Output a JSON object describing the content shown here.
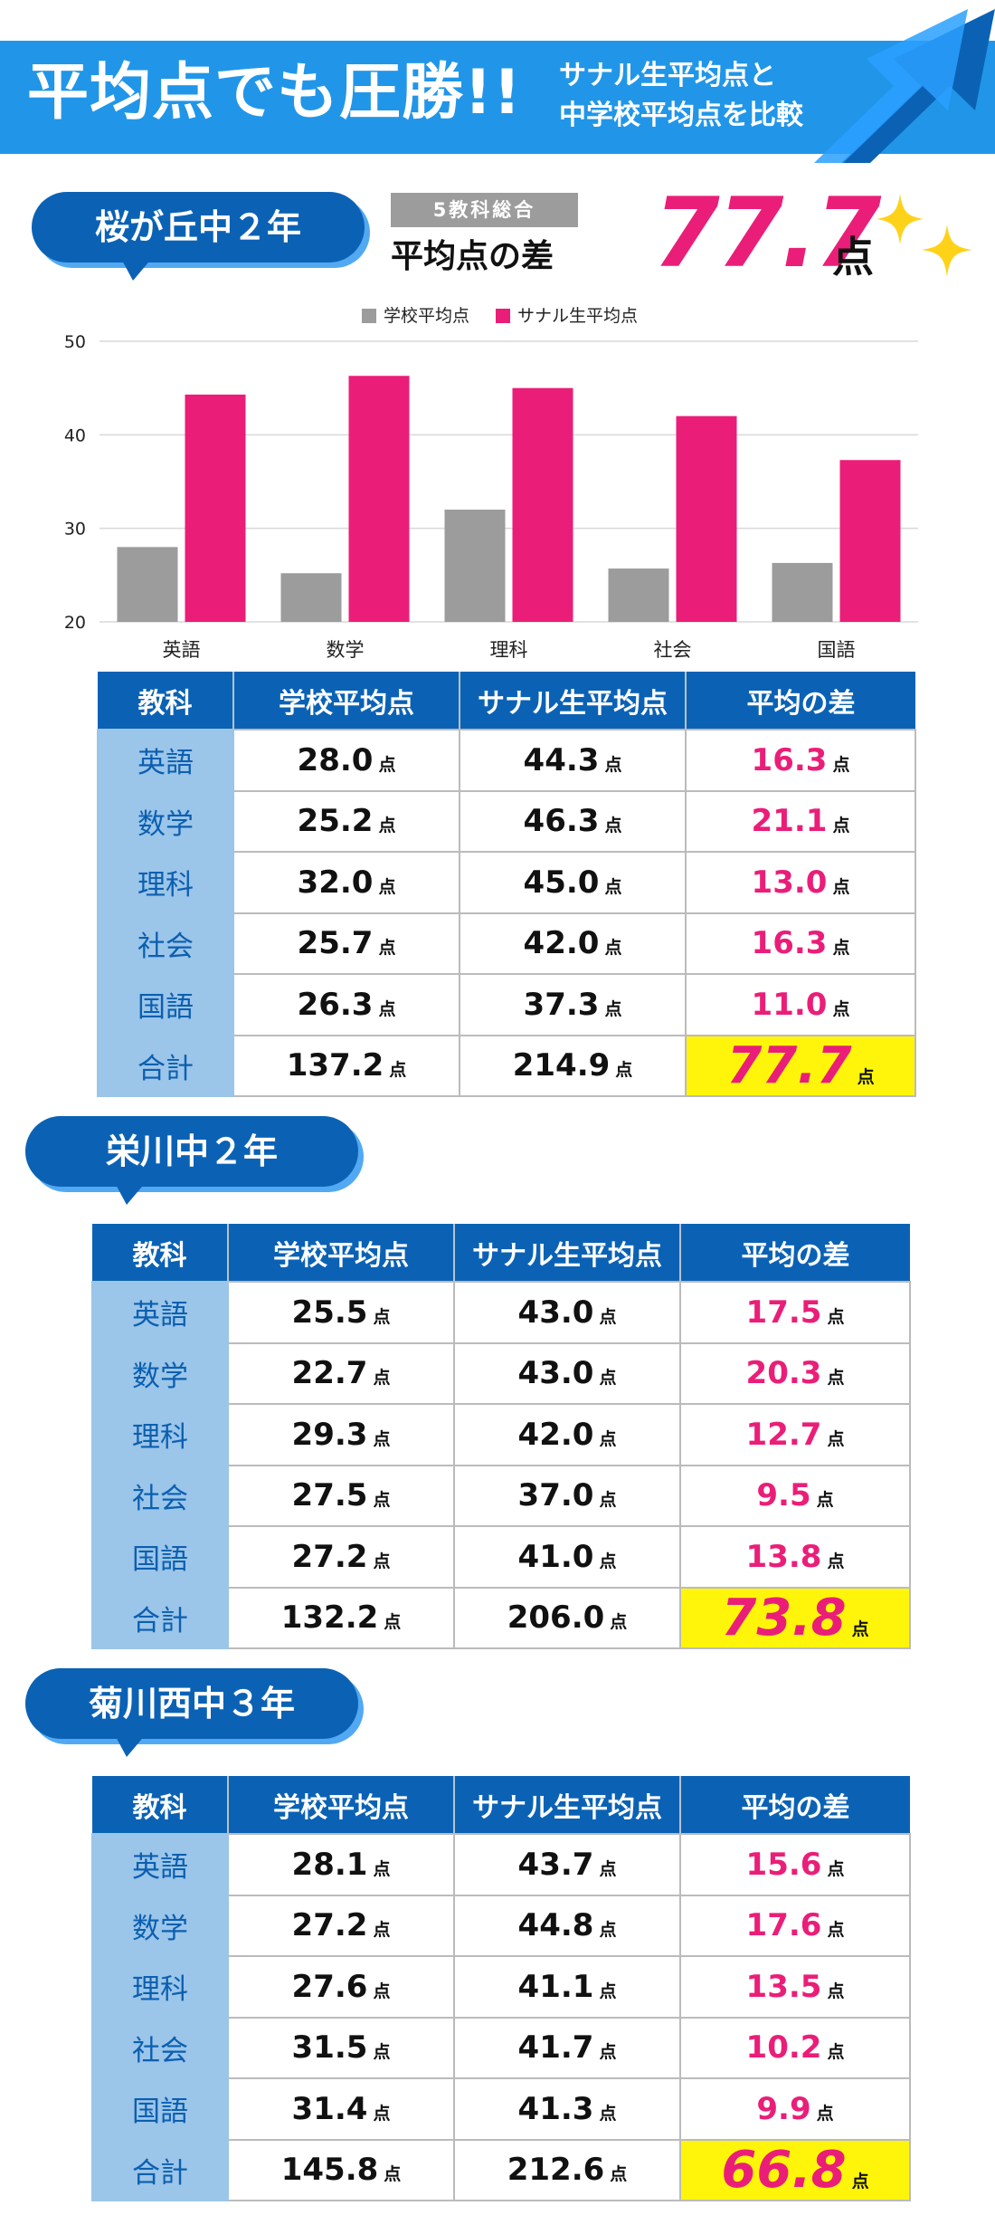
{
  "banner": {
    "title": "平均点でも圧勝!!",
    "subtitle_line1": "サナル生平均点と",
    "subtitle_line2": "中学校平均点を比較"
  },
  "colors": {
    "brand_blue": "#0b62b5",
    "banner_blue": "#2196e8",
    "school_bar": "#9c9c9c",
    "sanaru_bar": "#ea1e78",
    "highlight": "#fff50a"
  },
  "unit": "点",
  "summary": {
    "badge": "5教科総合",
    "label": "平均点の差",
    "value": "77.7",
    "unit": "点"
  },
  "headers": [
    "教科",
    "学校平均点",
    "サナル生平均点",
    "平均の差"
  ],
  "schools": [
    {
      "name": "桜が丘中２年",
      "rows": [
        {
          "subject": "英語",
          "school": "28.0",
          "sanaru": "44.3",
          "diff": "16.3"
        },
        {
          "subject": "数学",
          "school": "25.2",
          "sanaru": "46.3",
          "diff": "21.1"
        },
        {
          "subject": "理科",
          "school": "32.0",
          "sanaru": "45.0",
          "diff": "13.0"
        },
        {
          "subject": "社会",
          "school": "25.7",
          "sanaru": "42.0",
          "diff": "16.3"
        },
        {
          "subject": "国語",
          "school": "26.3",
          "sanaru": "37.3",
          "diff": "11.0"
        },
        {
          "subject": "合計",
          "school": "137.2",
          "sanaru": "214.9",
          "diff": "77.7"
        }
      ]
    },
    {
      "name": "栄川中２年",
      "rows": [
        {
          "subject": "英語",
          "school": "25.5",
          "sanaru": "43.0",
          "diff": "17.5"
        },
        {
          "subject": "数学",
          "school": "22.7",
          "sanaru": "43.0",
          "diff": "20.3"
        },
        {
          "subject": "理科",
          "school": "29.3",
          "sanaru": "42.0",
          "diff": "12.7"
        },
        {
          "subject": "社会",
          "school": "27.5",
          "sanaru": "37.0",
          "diff": "9.5"
        },
        {
          "subject": "国語",
          "school": "27.2",
          "sanaru": "41.0",
          "diff": "13.8"
        },
        {
          "subject": "合計",
          "school": "132.2",
          "sanaru": "206.0",
          "diff": "73.8"
        }
      ]
    },
    {
      "name": "菊川西中３年",
      "rows": [
        {
          "subject": "英語",
          "school": "28.1",
          "sanaru": "43.7",
          "diff": "15.6"
        },
        {
          "subject": "数学",
          "school": "27.2",
          "sanaru": "44.8",
          "diff": "17.6"
        },
        {
          "subject": "理科",
          "school": "27.6",
          "sanaru": "41.1",
          "diff": "13.5"
        },
        {
          "subject": "社会",
          "school": "31.5",
          "sanaru": "41.7",
          "diff": "10.2"
        },
        {
          "subject": "国語",
          "school": "31.4",
          "sanaru": "41.3",
          "diff": "9.9"
        },
        {
          "subject": "合計",
          "school": "145.8",
          "sanaru": "212.6",
          "diff": "66.8"
        }
      ]
    }
  ],
  "chart_data": {
    "type": "bar",
    "categories": [
      "英語",
      "数学",
      "理科",
      "社会",
      "国語"
    ],
    "series": [
      {
        "name": "学校平均点",
        "color": "#9c9c9c",
        "values": [
          28.0,
          25.2,
          32.0,
          25.7,
          26.3
        ]
      },
      {
        "name": "サナル生平均点",
        "color": "#ea1e78",
        "values": [
          44.3,
          46.3,
          45.0,
          42.0,
          37.3
        ]
      }
    ],
    "ylim": [
      20,
      50
    ],
    "yticks": [
      20,
      30,
      40,
      50
    ],
    "grid": true,
    "legend": "top-center"
  }
}
